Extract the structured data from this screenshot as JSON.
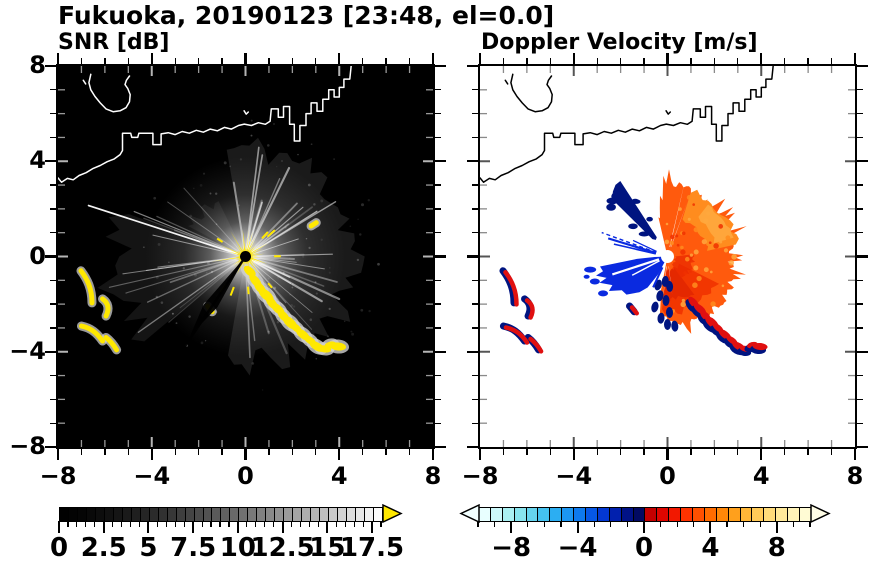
{
  "title": "Fukuoka, 20190123 [23:48, el=0.0]",
  "panels": {
    "left": {
      "title": "SNR [dB]"
    },
    "right": {
      "title": "Doppler Velocity [m/s]"
    }
  },
  "axes": {
    "range": [
      -8,
      8
    ],
    "tick_values": [
      -8,
      -4,
      0,
      4,
      8
    ],
    "xtick_labels": [
      "−8",
      "−4",
      "0",
      "4",
      "8"
    ],
    "ytick_labels": [
      "8",
      "4",
      "0",
      "−4",
      "−8"
    ],
    "minor_step": 1
  },
  "snr_colorbar": {
    "min": 0,
    "max": 18,
    "cells": 36,
    "gamma": 1.45,
    "major_step": 2.5,
    "minor_step": 0.5,
    "tick_values": [
      0,
      2.5,
      5,
      7.5,
      10,
      12.5,
      15,
      17.5
    ],
    "tick_labels": [
      "0",
      "2.5",
      "5",
      "7.5",
      "10",
      "12.5",
      "15",
      "17.5"
    ],
    "start_color": "#000000",
    "end_color": "#ffffff",
    "overflow_arrow_color": "#ffe800"
  },
  "vel_colorbar": {
    "min": -10,
    "max": 10,
    "major_step": 4,
    "minor_step": 1,
    "tick_values": [
      -8,
      -4,
      0,
      4,
      8
    ],
    "tick_labels": [
      "−8",
      "−4",
      "0",
      "4",
      "8"
    ],
    "cells": [
      "#e8ffff",
      "#ccf8fa",
      "#aaf0f2",
      "#88e4ee",
      "#66d4ee",
      "#44c2f0",
      "#2caef2",
      "#1c96f2",
      "#0e7aee",
      "#0658e6",
      "#0338d2",
      "#0120ae",
      "#011286",
      "#020a62",
      "#c40000",
      "#de0600",
      "#f21800",
      "#fe3300",
      "#ff5000",
      "#ff6c00",
      "#ff8708",
      "#ffa01c",
      "#ffb738",
      "#ffca58",
      "#ffdb7a",
      "#ffe99a",
      "#fff3b8",
      "#fffbd4"
    ],
    "left_arrow_color": "#f2ffff",
    "right_arrow_color": "#fffde6"
  },
  "colors": {
    "background_left": "#000000",
    "coast_left": "#ffffff",
    "coast_right": "#000000",
    "echo_yellow": "#ffe800",
    "halo_gray": "#cfcfcf",
    "ray_white": "#ffffff",
    "fan_orange": "#ff5a0d",
    "fan_light_orange": "#ff8c1e",
    "fan_pale_orange": "#ffa83e",
    "fan_red": "#f03000",
    "fan_deep_red": "#e02600",
    "wedge_blue": "#0a2ae0",
    "navy": "#001480",
    "arc_red": "#e01010"
  },
  "chart_data": [
    {
      "type": "heatmap",
      "panel": "left",
      "title": "SNR [dB]",
      "xlim": [
        -8,
        8
      ],
      "ylim": [
        -8,
        8
      ],
      "xticks": [
        -8,
        -4,
        0,
        4,
        8
      ],
      "yticks": [
        -8,
        -4,
        0,
        4,
        8
      ],
      "grid": false,
      "colorbar": {
        "range": [
          0,
          18
        ],
        "label_values": [
          0,
          2.5,
          5,
          7.5,
          10,
          12.5,
          15,
          17.5
        ],
        "colormap": "black-to-white grayscale with yellow overflow arrow at high end"
      },
      "features": [
        "radar site at origin (0,0) marked by small black dot",
        "bright yellow saturated spiky echo cluster within ~1 unit of origin",
        "white radial beam/sidelobe streaks radiating from origin, densest toward the east半, diffuse glow to radius ~4",
        "long thin bright ray toward WNW reaching x≈-7, fainter ray fan toward WSW",
        "dark shadow wedge from origin toward SW (~235 deg), length ~2.5 units",
        "chain of yellow ground-clutter echoes with white halos from (0.2,-0.6) southeastward to (4.0,-3.8)",
        "yellow island-clutter arcs near (-7.0,-0.6)..(-6.5,-2.0), (-6.0,-1.8)..(-5.9,-2.5), (-7.0,-2.9)..(-6.1,-3.6), (-5.9,-3.4)..(-5.5,-3.9)",
        "white coastline of Hakata Bay across upper third, U-shaped peninsula near (-5.7,6.8), blocky harbor structures from (1.1,4.8) rising to top edge at (4.5,8)"
      ]
    },
    {
      "type": "heatmap",
      "panel": "right",
      "title": "Doppler Velocity [m/s]",
      "xlim": [
        -8,
        8
      ],
      "ylim": [
        -8,
        8
      ],
      "xticks": [
        -8,
        -4,
        0,
        4,
        8
      ],
      "yticks": [
        -8,
        -4,
        0,
        4,
        8
      ],
      "grid": false,
      "colorbar": {
        "range": [
          -10,
          10
        ],
        "label_values": [
          -8,
          -4,
          0,
          4,
          8
        ],
        "colormap": "pale cyan→blue→dark navy for negative, red→orange→yellow→cream for positive, arrows both ends"
      },
      "features": [
        "white background where no echo",
        "white circle at radar origin",
        "broad ragged fan of positive velocities (red-orange, lighter orange in NE sector) covering azimuths N through E to S, radius ~3 units",
        "dark navy streak of negative velocity along NW edge of fan from (-0.3,1.0) to (-2.0,2.7)",
        "solid bright-blue negative-velocity wedge pointing W-WSW from origin, radius ~2.9 units, ragged outer edge",
        "thin blue rays toward WNW (~(-2.5,0.8))",
        "small navy flecks along the fan's SW boundary below origin",
        "clutter echoes red with navy fringes matching SNR clutter: chain toward (4.0,-3.8) and island arcs at lower left",
        "black coastline identical to left panel"
      ]
    }
  ]
}
